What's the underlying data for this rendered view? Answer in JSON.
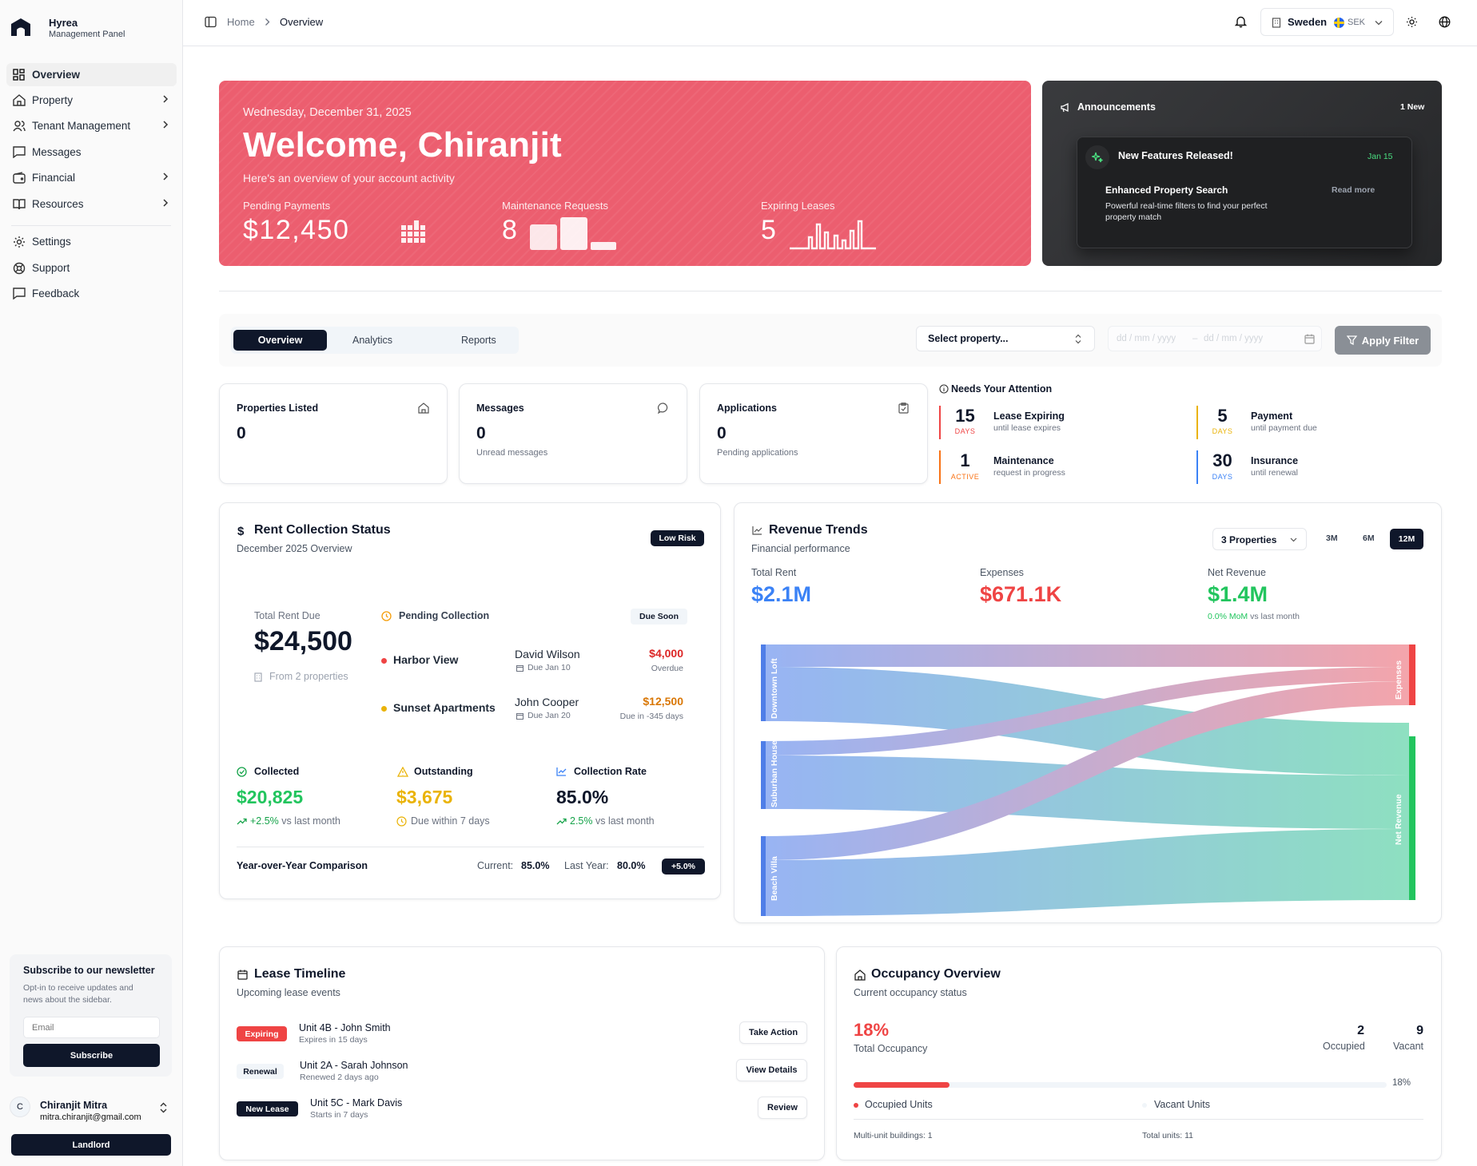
{
  "app": {
    "name": "Hyrea",
    "subtitle": "Management Panel"
  },
  "sidebar": {
    "items": [
      {
        "label": "Overview",
        "icon": "grid-icon"
      },
      {
        "label": "Property",
        "icon": "home-icon"
      },
      {
        "label": "Tenant Management",
        "icon": "users-icon"
      },
      {
        "label": "Messages",
        "icon": "message-icon"
      },
      {
        "label": "Financial",
        "icon": "wallet-icon"
      },
      {
        "label": "Resources",
        "icon": "book-icon"
      }
    ],
    "secondary": [
      {
        "label": "Settings",
        "icon": "gear-icon"
      },
      {
        "label": "Support",
        "icon": "lifebuoy-icon"
      },
      {
        "label": "Feedback",
        "icon": "feedback-icon"
      }
    ],
    "newsletter": {
      "title": "Subscribe to our newsletter",
      "text_line1": "Opt-in to receive updates and",
      "text_line2": "news about the sidebar.",
      "placeholder": "Email",
      "button": "Subscribe"
    },
    "user": {
      "initial": "C",
      "name": "Chiranjit Mitra",
      "email": "mitra.chiranjit@gmail.com",
      "role": "Landlord"
    }
  },
  "topbar": {
    "breadcrumb_home": "Home",
    "breadcrumb_current": "Overview",
    "country": "Sweden",
    "currency": "SEK"
  },
  "hero": {
    "date": "Wednesday, December 31, 2025",
    "title": "Welcome, Chiranjit",
    "subtitle": "Here's an overview of your account activity",
    "stats": [
      {
        "label": "Pending Payments",
        "value": "$12,450"
      },
      {
        "label": "Maintenance Requests",
        "value": "8"
      },
      {
        "label": "Expiring Leases",
        "value": "5"
      }
    ]
  },
  "announcements": {
    "title": "Announcements",
    "badge": "1 New",
    "item_title": "New Features Released!",
    "item_date": "Jan 15",
    "feature": "Enhanced Property Search",
    "desc_line1": "Powerful real-time filters to find your perfect",
    "desc_line2": "property match",
    "read_more": "Read more"
  },
  "filters": {
    "tabs": [
      "Overview",
      "Analytics",
      "Reports"
    ],
    "select": "Select property...",
    "date_from": "dd / mm / yyyy",
    "date_sep": "–",
    "date_to": "dd / mm / yyyy",
    "apply": "Apply Filter"
  },
  "stat_cards": [
    {
      "label": "Properties Listed",
      "value": "0",
      "sub": "",
      "icon": "home-icon"
    },
    {
      "label": "Messages",
      "value": "0",
      "sub": "Unread messages",
      "icon": "chat-icon"
    },
    {
      "label": "Applications",
      "value": "0",
      "sub": "Pending applications",
      "icon": "clipboard-icon"
    }
  ],
  "attention": {
    "title": "Needs Your Attention",
    "items": [
      {
        "num": "15",
        "unit": "DAYS",
        "title": "Lease Expiring",
        "sub": "until lease expires",
        "color": "#ef4444"
      },
      {
        "num": "5",
        "unit": "DAYS",
        "title": "Payment",
        "sub": "until payment due",
        "color": "#eab308"
      },
      {
        "num": "1",
        "unit": "ACTIVE",
        "title": "Maintenance",
        "sub": "request in progress",
        "color": "#f97316"
      },
      {
        "num": "30",
        "unit": "DAYS",
        "title": "Insurance",
        "sub": "until renewal",
        "color": "#3b82f6"
      }
    ]
  },
  "rent": {
    "title": "Rent Collection Status",
    "subtitle": "December 2025 Overview",
    "risk": "Low Risk",
    "total_label": "Total Rent Due",
    "total": "$24,500",
    "from": "From 2 properties",
    "pending_label": "Pending Collection",
    "due_badge": "Due Soon",
    "rows": [
      {
        "property": "Harbor View",
        "tenant": "David Wilson",
        "due": "Due Jan 10",
        "amount": "$4,000",
        "status": "Overdue",
        "dot": "#ef4444",
        "amt_color": "#dc2626"
      },
      {
        "property": "Sunset Apartments",
        "tenant": "John Cooper",
        "due": "Due Jan 20",
        "amount": "$12,500",
        "status": "Due in -345 days",
        "dot": "#eab308",
        "amt_color": "#d97706"
      }
    ],
    "metrics": [
      {
        "label": "Collected",
        "value": "$20,825",
        "note_strong": "+2.5%",
        "note": "vs last month",
        "color": "#16a34a"
      },
      {
        "label": "Outstanding",
        "value": "$3,675",
        "note_strong": "",
        "note": "Due within 7 days",
        "color": "#eab308"
      },
      {
        "label": "Collection Rate",
        "value": "85.0%",
        "note_strong": "2.5%",
        "note": "vs last month",
        "color": "#0f172a"
      }
    ],
    "yoy_label": "Year-over-Year Comparison",
    "current_label": "Current:",
    "current": "85.0%",
    "last_label": "Last Year:",
    "last": "80.0%",
    "delta": "+5.0%"
  },
  "revenue": {
    "title": "Revenue Trends",
    "subtitle": "Financial performance",
    "select": "3 Properties",
    "ranges": [
      "3M",
      "6M",
      "12M"
    ],
    "kpis": [
      {
        "label": "Total Rent",
        "value": "$2.1M",
        "color": "#3b82f6"
      },
      {
        "label": "Expenses",
        "value": "$671.1K",
        "color": "#ef4444"
      },
      {
        "label": "Net Revenue",
        "value": "$1.4M",
        "color": "#22c55e"
      }
    ],
    "mom_strong": "0.0% MoM",
    "mom": "vs last month",
    "sankey": {
      "sources": [
        "Downtown Loft",
        "Suburban House",
        "Beach Villa"
      ],
      "targets": [
        "Expenses",
        "Net Revenue"
      ]
    }
  },
  "lease": {
    "title": "Lease Timeline",
    "subtitle": "Upcoming lease events",
    "items": [
      {
        "badge": "Expiring",
        "unit": "Unit 4B - John Smith",
        "sub": "Expires in 15 days",
        "action": "Take Action"
      },
      {
        "badge": "Renewal",
        "unit": "Unit 2A - Sarah Johnson",
        "sub": "Renewed 2 days ago",
        "action": "View Details"
      },
      {
        "badge": "New Lease",
        "unit": "Unit 5C - Mark Davis",
        "sub": "Starts in 7 days",
        "action": "Review"
      }
    ]
  },
  "occupancy": {
    "title": "Occupancy Overview",
    "subtitle": "Current occupancy status",
    "percent": "18%",
    "percent_label": "Total Occupancy",
    "occupied": "2",
    "occupied_label": "Occupied",
    "vacant": "9",
    "vacant_label": "Vacant",
    "bar_fraction": 0.18,
    "bar_label": "18%",
    "legend_occ": "Occupied Units",
    "legend_vac": "Vacant Units",
    "multi": "Multi-unit buildings: 1",
    "total": "Total units: 11"
  }
}
